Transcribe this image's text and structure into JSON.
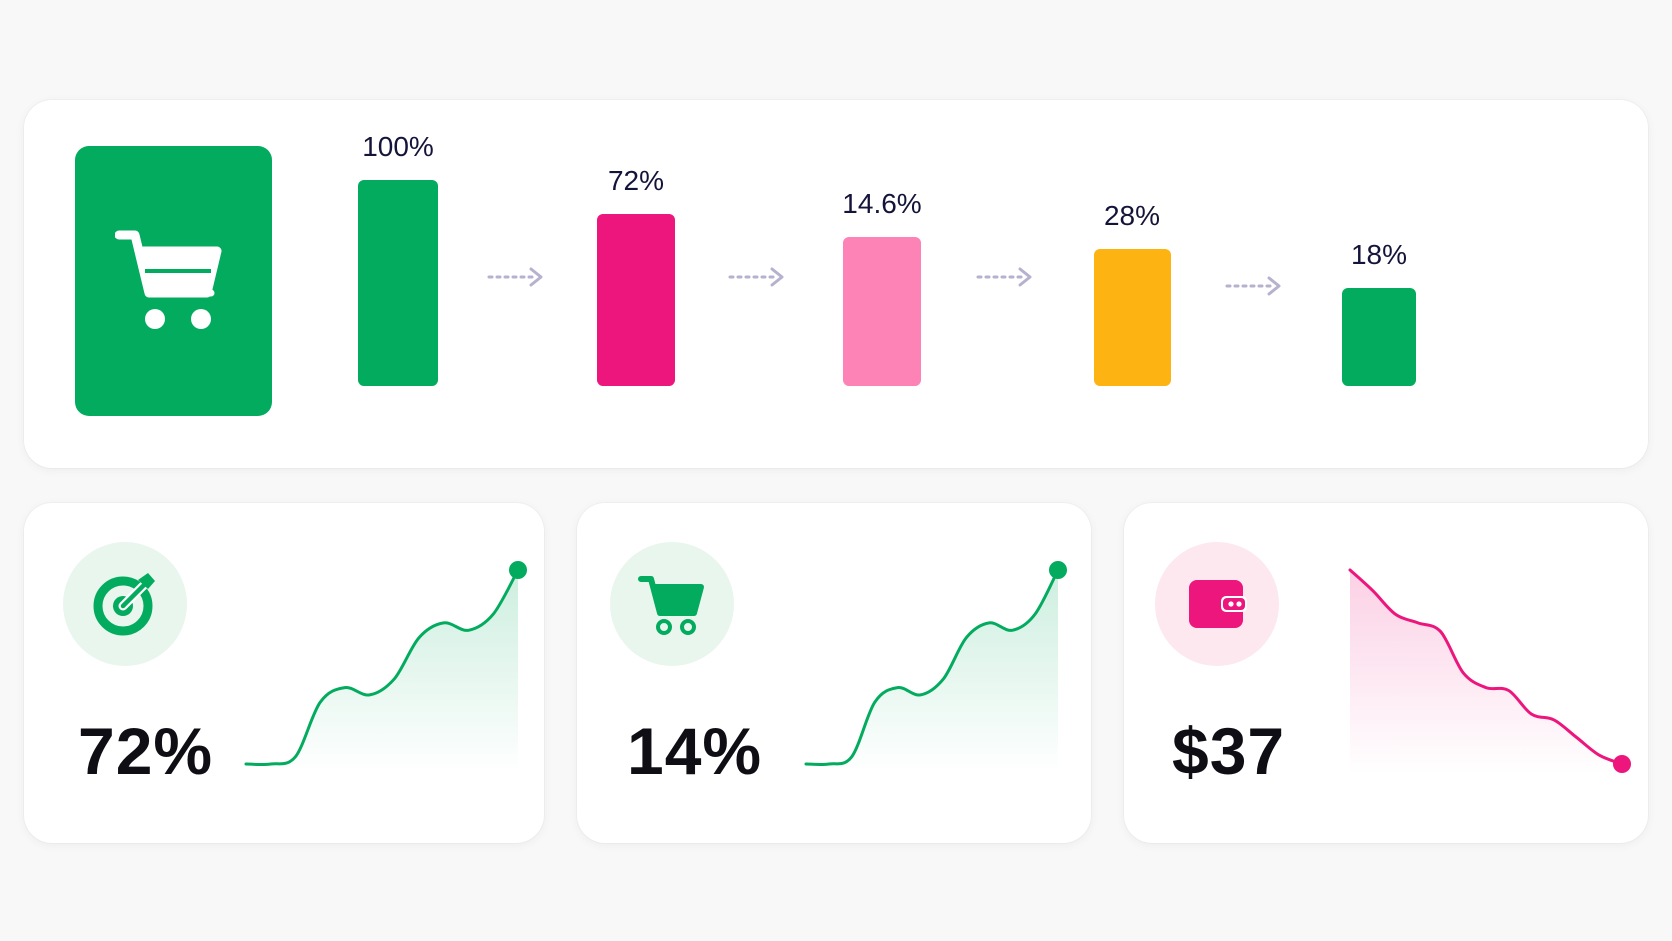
{
  "colors": {
    "green": "#03ab5f",
    "magenta": "#ec167c",
    "pink": "#fd82b6",
    "amber": "#fdb412",
    "connector": "#b4b2ce",
    "green_soft": "#e9f6ee",
    "pink_soft": "#fde8ef"
  },
  "chart_data": [
    {
      "type": "bar",
      "icon": "shopping-cart-icon",
      "categories": [
        "",
        "",
        "",
        "",
        ""
      ],
      "values": [
        100,
        72,
        14.6,
        28,
        18
      ],
      "labels": [
        "100%",
        "72%",
        "14.6%",
        "28%",
        "18%"
      ],
      "colors": [
        "#03ab5f",
        "#ec167c",
        "#fd82b6",
        "#fdb412",
        "#03ab5f"
      ],
      "connectors": "dotted-arrow",
      "ylim": [
        0,
        100
      ],
      "grid": false
    },
    {
      "type": "line",
      "id": "kpi-target",
      "icon": "target-arrow-icon",
      "value_label": "72%",
      "trend": "up",
      "color": "#03ab5f",
      "values": [
        0,
        0,
        5,
        42,
        52,
        47,
        58,
        86,
        96,
        91,
        102,
        132
      ]
    },
    {
      "type": "line",
      "id": "kpi-cart",
      "icon": "shopping-cart-icon",
      "value_label": "14%",
      "trend": "up",
      "color": "#03ab5f",
      "values": [
        0,
        0,
        5,
        42,
        52,
        47,
        58,
        86,
        96,
        91,
        102,
        132
      ]
    },
    {
      "type": "line",
      "id": "kpi-order",
      "icon": "wallet-icon",
      "value_label": "$37",
      "trend": "down",
      "color": "#ec167c",
      "values": [
        132,
        118,
        102,
        96,
        90,
        62,
        52,
        50,
        34,
        30,
        18,
        6,
        0
      ]
    }
  ]
}
